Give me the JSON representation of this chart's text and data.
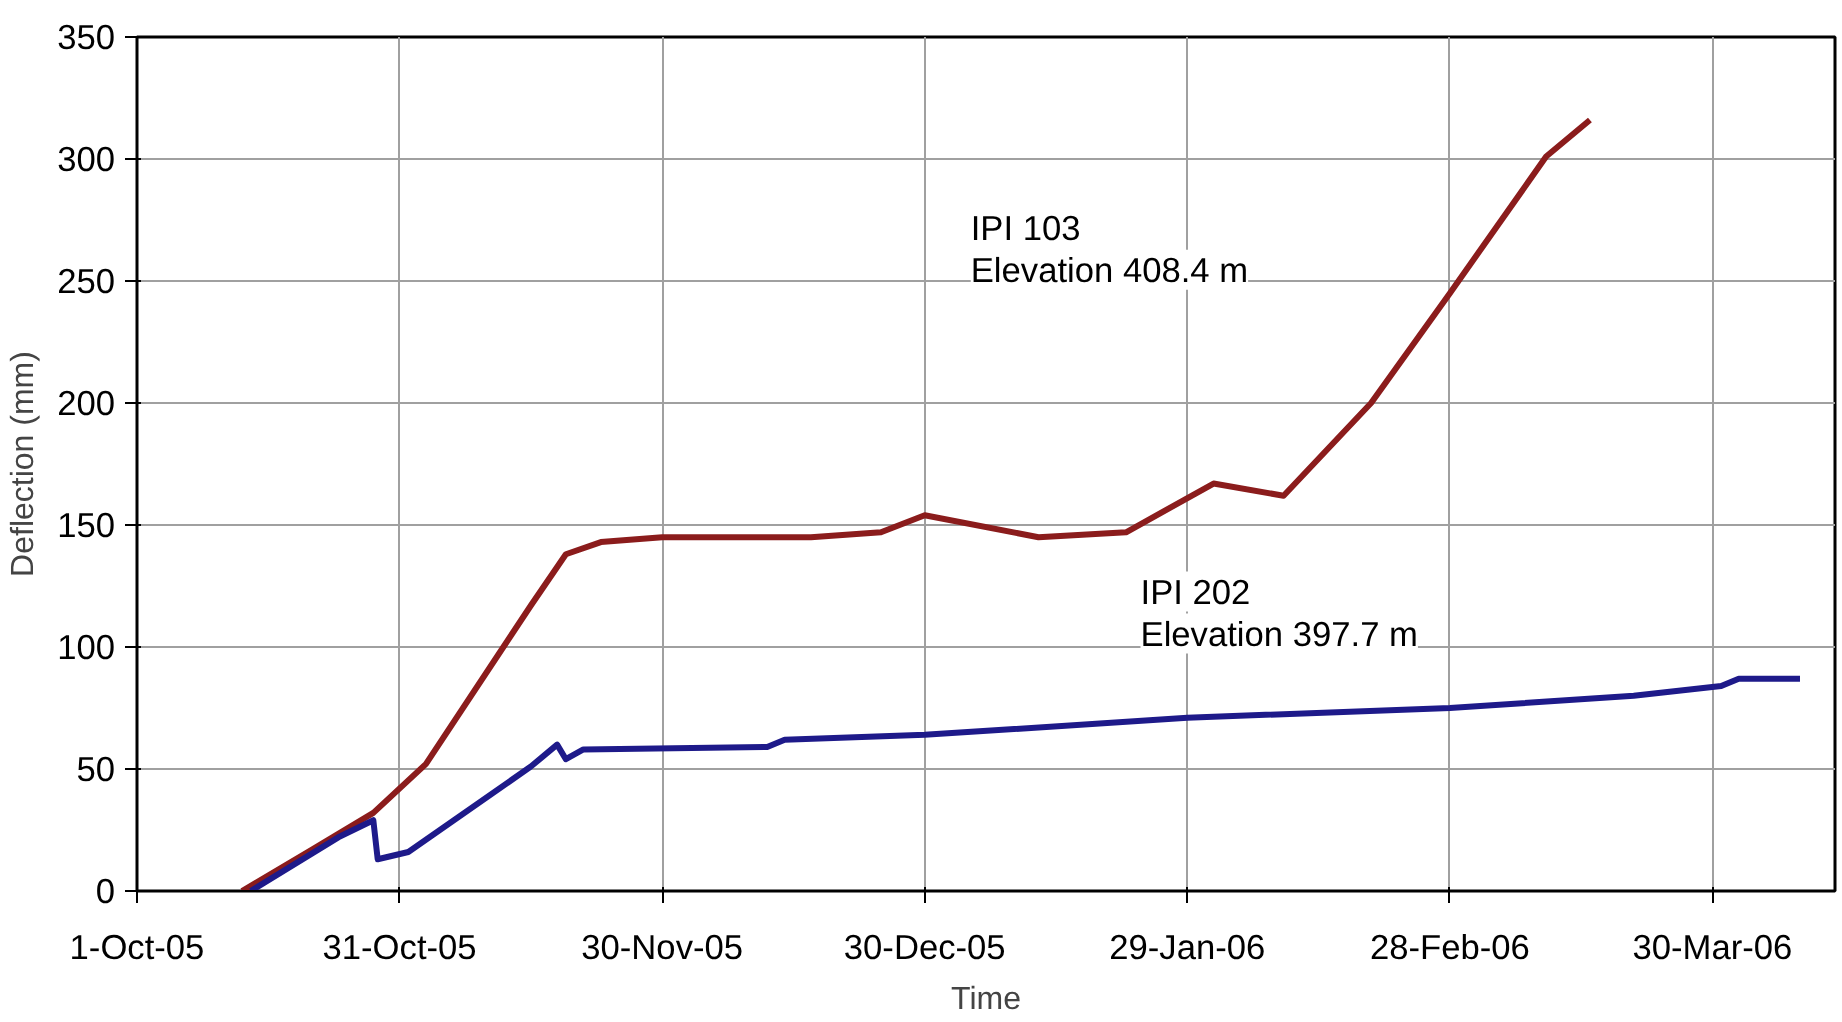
{
  "chart_data": {
    "type": "line",
    "xlabel": "Time",
    "ylabel": "Deflection (mm)",
    "xlim": [
      "2005-10-01",
      "2006-04-13"
    ],
    "ylim": [
      0,
      350
    ],
    "xticks": [
      {
        "value": "2005-10-01",
        "label": "1-Oct-05"
      },
      {
        "value": "2005-10-31",
        "label": "31-Oct-05"
      },
      {
        "value": "2005-11-30",
        "label": "30-Nov-05"
      },
      {
        "value": "2005-12-30",
        "label": "30-Dec-05"
      },
      {
        "value": "2006-01-29",
        "label": "29-Jan-06"
      },
      {
        "value": "2006-02-28",
        "label": "28-Feb-06"
      },
      {
        "value": "2006-03-30",
        "label": "30-Mar-06"
      }
    ],
    "yticks": [
      0,
      50,
      100,
      150,
      200,
      250,
      300,
      350
    ],
    "grid": true,
    "marker": "none",
    "line_style": "solid",
    "series": [
      {
        "color": "#8b1c1c",
        "x": [
          "2005-10-13",
          "2005-10-21",
          "2005-10-28",
          "2005-11-03",
          "2005-11-15",
          "2005-11-19",
          "2005-11-23",
          "2005-11-30",
          "2005-12-17",
          "2005-12-25",
          "2005-12-30",
          "2006-01-12",
          "2006-01-22",
          "2006-02-01",
          "2006-02-09",
          "2006-02-19",
          "2006-02-28",
          "2006-03-11",
          "2006-03-16"
        ],
        "values": [
          0,
          17,
          32,
          52,
          117,
          138,
          143,
          145,
          145,
          147,
          154,
          145,
          147,
          167,
          162,
          200,
          245,
          301,
          316
        ]
      },
      {
        "color": "#1e1a8a",
        "x": [
          "2005-10-14",
          "2005-10-24",
          "2005-10-28",
          "2005-10-28T12:00",
          "2005-11-01",
          "2005-11-15",
          "2005-11-18",
          "2005-11-19",
          "2005-11-21",
          "2005-12-12",
          "2005-12-14",
          "2005-12-30",
          "2006-01-29",
          "2006-02-28",
          "2006-03-21",
          "2006-03-31",
          "2006-04-02",
          "2006-04-09"
        ],
        "values": [
          0,
          22,
          29,
          13,
          16,
          51,
          60,
          54,
          58,
          59,
          62,
          64,
          71,
          75,
          80,
          84,
          87,
          87
        ]
      }
    ],
    "annotations": [
      "IPI 103\nElevation 408.4 m",
      "IPI 202\nElevation 397.7 m"
    ]
  }
}
